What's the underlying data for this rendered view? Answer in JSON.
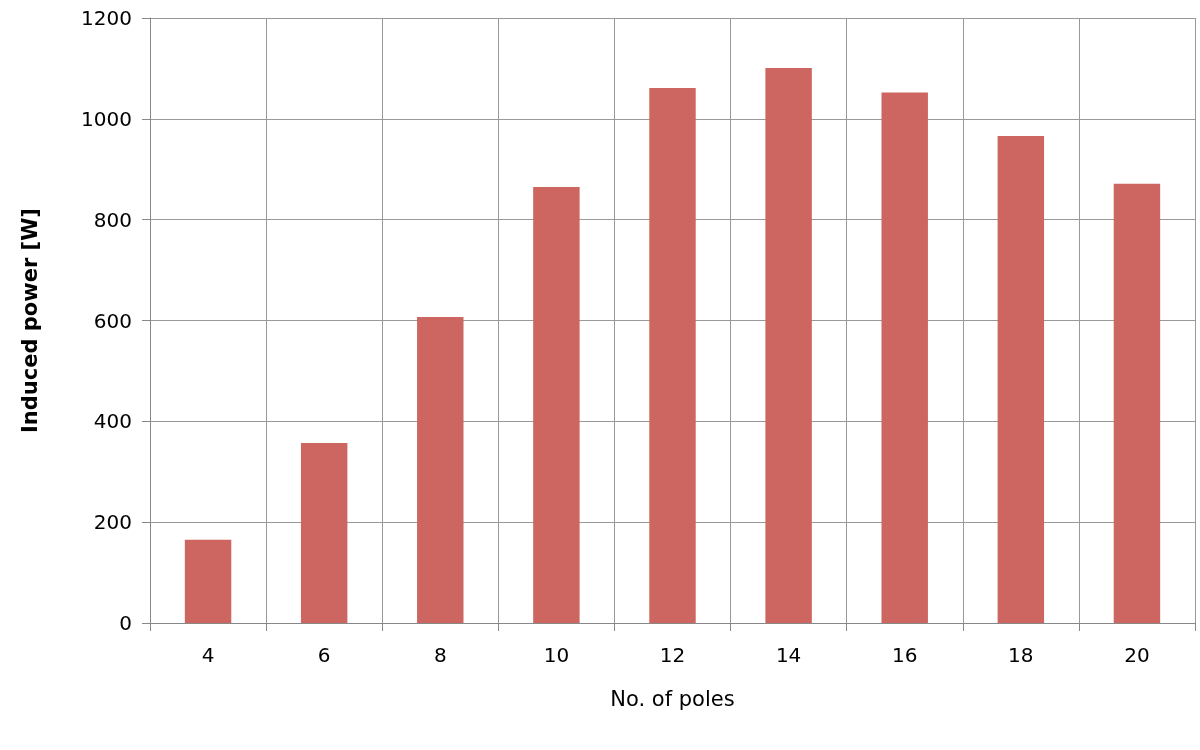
{
  "chart_data": {
    "type": "bar",
    "xlabel": "No. of poles",
    "ylabel": "Induced power [W]",
    "categories": [
      "4",
      "6",
      "8",
      "10",
      "12",
      "14",
      "16",
      "18",
      "20"
    ],
    "values": [
      165,
      357,
      607,
      865,
      1061,
      1101,
      1052,
      966,
      871
    ],
    "color": "#cd6660",
    "ylim": [
      0,
      1200
    ],
    "yticks": [
      0,
      200,
      400,
      600,
      800,
      1000,
      1200
    ],
    "grid": true
  }
}
